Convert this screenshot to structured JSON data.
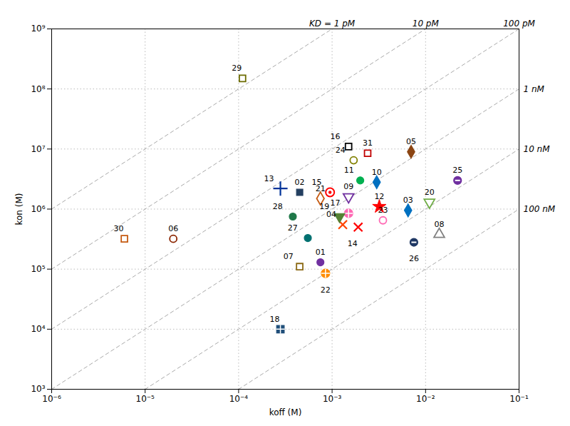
{
  "chart_data": {
    "type": "scatter",
    "xlabel": "koff (M)",
    "ylabel": "kon (M)",
    "log": true,
    "grid": true,
    "xlim": [
      1e-06,
      0.1
    ],
    "ylim": [
      1000.0,
      1000000000.0
    ],
    "xticks": [
      {
        "value": 1e-06,
        "label": "10⁻⁶"
      },
      {
        "value": 1e-05,
        "label": "10⁻⁵"
      },
      {
        "value": 0.0001,
        "label": "10⁻⁴"
      },
      {
        "value": 0.001,
        "label": "10⁻³"
      },
      {
        "value": 0.01,
        "label": "10⁻²"
      },
      {
        "value": 0.1,
        "label": "10⁻¹"
      }
    ],
    "yticks": [
      {
        "value": 1000.0,
        "label": "10³"
      },
      {
        "value": 10000.0,
        "label": "10⁴"
      },
      {
        "value": 100000.0,
        "label": "10⁵"
      },
      {
        "value": 1000000.0,
        "label": "10⁶"
      },
      {
        "value": 10000000.0,
        "label": "10⁷"
      },
      {
        "value": 100000000.0,
        "label": "10⁸"
      },
      {
        "value": 1000000000.0,
        "label": "10⁹"
      }
    ],
    "series": [
      {
        "name": "KD = 1 pM",
        "type": "line",
        "color": "#aaaaaa",
        "line_style": "dashed",
        "x": [
          1e-06,
          0.001
        ],
        "values": [
          1000000.0,
          1000000000.0
        ]
      },
      {
        "name": "10 pM",
        "type": "line",
        "color": "#aaaaaa",
        "line_style": "dashed",
        "x": [
          1e-06,
          0.01
        ],
        "values": [
          100000.0,
          1000000000.0
        ]
      },
      {
        "name": "100 pM",
        "type": "line",
        "color": "#aaaaaa",
        "line_style": "dashed",
        "x": [
          1e-06,
          0.1
        ],
        "values": [
          10000.0,
          1000000000.0
        ]
      },
      {
        "name": "1 nM",
        "type": "line",
        "color": "#aaaaaa",
        "line_style": "dashed",
        "x": [
          1e-06,
          0.1
        ],
        "values": [
          1000.0,
          100000000.0
        ]
      },
      {
        "name": "10 nM",
        "type": "line",
        "color": "#aaaaaa",
        "line_style": "dashed",
        "x": [
          1e-05,
          0.1
        ],
        "values": [
          1000.0,
          10000000.0
        ]
      },
      {
        "name": "100 nM",
        "type": "line",
        "color": "#aaaaaa",
        "line_style": "dashed",
        "x": [
          0.0001,
          0.1
        ],
        "values": [
          1000.0,
          1000000.0
        ]
      },
      {
        "name": "01",
        "type": "scatter",
        "color": "#7030A0",
        "marker": "circle",
        "x": [
          0.00075
        ],
        "values": [
          130000.0
        ]
      },
      {
        "name": "02",
        "type": "scatter",
        "color": "#243F60",
        "marker": "square",
        "x": [
          0.00045
        ],
        "values": [
          1900000.0
        ]
      },
      {
        "name": "03",
        "type": "scatter",
        "color": "#0070C0",
        "marker": "diamond",
        "x": [
          0.0065
        ],
        "values": [
          950000.0
        ]
      },
      {
        "name": "04",
        "type": "scatter",
        "color": "#FF4500",
        "marker": "x",
        "x": [
          0.0013
        ],
        "values": [
          550000.0
        ]
      },
      {
        "name": "05",
        "type": "scatter",
        "color": "#8B4513",
        "marker": "diamond",
        "x": [
          0.007
        ],
        "values": [
          9000000.0
        ]
      },
      {
        "name": "06",
        "type": "scatter",
        "color": "#8B2500",
        "marker": "circle-open",
        "x": [
          2e-05
        ],
        "values": [
          320000.0
        ]
      },
      {
        "name": "07",
        "type": "scatter",
        "color": "#8B6914",
        "marker": "square-open",
        "x": [
          0.00045
        ],
        "values": [
          110000.0
        ]
      },
      {
        "name": "08",
        "type": "scatter",
        "color": "#808080",
        "marker": "triangle-up-open",
        "x": [
          0.014
        ],
        "values": [
          380000.0
        ]
      },
      {
        "name": "09",
        "type": "scatter",
        "color": "#7030A0",
        "marker": "triangle-down-open",
        "x": [
          0.0015
        ],
        "values": [
          1600000.0
        ]
      },
      {
        "name": "10",
        "type": "scatter",
        "color": "#0070C0",
        "marker": "diamond",
        "x": [
          0.003
        ],
        "values": [
          2800000.0
        ]
      },
      {
        "name": "11",
        "type": "scatter",
        "color": "#00B050",
        "marker": "circle",
        "x": [
          0.002
        ],
        "values": [
          3000000.0
        ]
      },
      {
        "name": "12",
        "type": "scatter",
        "color": "#FF0000",
        "marker": "star",
        "x": [
          0.0032
        ],
        "values": [
          1100000.0
        ]
      },
      {
        "name": "13",
        "type": "scatter",
        "color": "#003399",
        "marker": "plus",
        "x": [
          0.00028
        ],
        "values": [
          2200000.0
        ]
      },
      {
        "name": "14",
        "type": "scatter",
        "color": "#FF0000",
        "marker": "x",
        "x": [
          0.0019
        ],
        "values": [
          500000.0
        ]
      },
      {
        "name": "15",
        "type": "scatter",
        "color": "#FF0000",
        "marker": "target",
        "x": [
          0.00095
        ],
        "values": [
          1900000.0
        ]
      },
      {
        "name": "16",
        "type": "scatter",
        "color": "#000000",
        "marker": "square-open",
        "x": [
          0.0015
        ],
        "values": [
          11000000.0
        ]
      },
      {
        "name": "17",
        "type": "scatter",
        "color": "#FF69B4",
        "marker": "circle-plus",
        "x": [
          0.0015
        ],
        "values": [
          850000.0
        ]
      },
      {
        "name": "18",
        "type": "scatter",
        "color": "#1F4E79",
        "marker": "square-plus",
        "x": [
          0.00028
        ],
        "values": [
          10000.0
        ]
      },
      {
        "name": "19",
        "type": "scatter",
        "color": "#548235",
        "marker": "triangle-down",
        "x": [
          0.0012
        ],
        "values": [
          750000.0
        ]
      },
      {
        "name": "20",
        "type": "scatter",
        "color": "#70AD47",
        "marker": "triangle-down-open",
        "x": [
          0.011
        ],
        "values": [
          1300000.0
        ]
      },
      {
        "name": "21",
        "type": "scatter",
        "color": "#C55A11",
        "marker": "diamond-open",
        "x": [
          0.00075
        ],
        "values": [
          1500000.0
        ]
      },
      {
        "name": "22",
        "type": "scatter",
        "color": "#FF8C00",
        "marker": "circle-plus",
        "x": [
          0.00085
        ],
        "values": [
          85000.0
        ]
      },
      {
        "name": "23",
        "type": "scatter",
        "color": "#FF69B4",
        "marker": "circle-open",
        "x": [
          0.0035
        ],
        "values": [
          650000.0
        ]
      },
      {
        "name": "24",
        "type": "scatter",
        "color": "#808000",
        "marker": "circle-open",
        "x": [
          0.0017
        ],
        "values": [
          6500000.0
        ]
      },
      {
        "name": "25",
        "type": "scatter",
        "color": "#7030A0",
        "marker": "circle-minus",
        "x": [
          0.022
        ],
        "values": [
          3000000.0
        ]
      },
      {
        "name": "26",
        "type": "scatter",
        "color": "#1F3864",
        "marker": "circle-minus",
        "x": [
          0.0075
        ],
        "values": [
          280000.0
        ]
      },
      {
        "name": "27",
        "type": "scatter",
        "color": "#007070",
        "marker": "circle",
        "x": [
          0.00055
        ],
        "values": [
          330000.0
        ]
      },
      {
        "name": "28",
        "type": "scatter",
        "color": "#1F7849",
        "marker": "circle",
        "x": [
          0.00038
        ],
        "values": [
          750000.0
        ]
      },
      {
        "name": "29",
        "type": "scatter",
        "color": "#6B6B00",
        "marker": "square-open",
        "x": [
          0.00011
        ],
        "values": [
          150000000.0
        ]
      },
      {
        "name": "30",
        "type": "scatter",
        "color": "#C55A11",
        "marker": "square-open",
        "x": [
          6e-06
        ],
        "values": [
          320000.0
        ]
      },
      {
        "name": "31",
        "type": "scatter",
        "color": "#C00000",
        "marker": "square-open",
        "x": [
          0.0024
        ],
        "values": [
          8500000.0
        ]
      }
    ]
  }
}
